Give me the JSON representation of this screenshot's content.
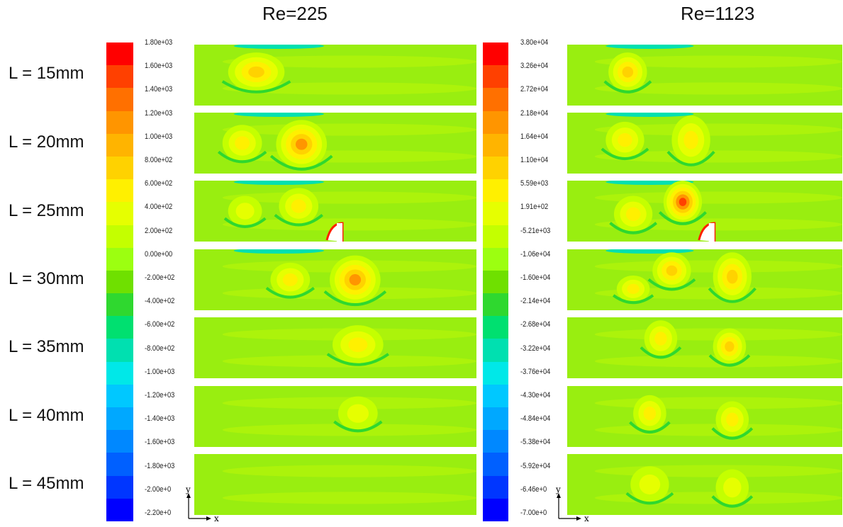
{
  "columns": [
    {
      "title": "Re=225",
      "ticks": [
        "1.80e+03",
        "1.60e+03",
        "1.40e+03",
        "1.20e+03",
        "1.00e+03",
        "8.00e+02",
        "6.00e+02",
        "4.00e+02",
        "2.00e+02",
        "0.00e+00",
        "-2.00e+02",
        "-4.00e+02",
        "-6.00e+02",
        "-8.00e+02",
        "-1.00e+03",
        "-1.20e+03",
        "-1.40e+03",
        "-1.60e+03",
        "-1.80e+03",
        "-2.00e+0",
        "-2.20e+0"
      ]
    },
    {
      "title": "Re=1123",
      "ticks": [
        "3.80e+04",
        "3.26e+04",
        "2.72e+04",
        "2.18e+04",
        "1.64e+04",
        "1.10e+04",
        "5.59e+03",
        "1.91e+02",
        "-5.21e+03",
        "-1.06e+04",
        "-1.60e+04",
        "-2.14e+04",
        "-2.68e+04",
        "-3.22e+04",
        "-3.76e+04",
        "-4.30e+04",
        "-4.84e+04",
        "-5.38e+04",
        "-5.92e+04",
        "-6.46e+0",
        "-7.00e+0"
      ]
    }
  ],
  "rows": [
    "L = 15mm",
    "L = 20mm",
    "L = 25mm",
    "L = 30mm",
    "L = 35mm",
    "L = 40mm",
    "L = 45mm"
  ],
  "axes": {
    "x": "x",
    "y": "y"
  },
  "colorscale": [
    "#ff0000",
    "#ff4000",
    "#ff7000",
    "#ff9500",
    "#ffb400",
    "#ffd200",
    "#fff000",
    "#e6ff00",
    "#c4ff00",
    "#9cff10",
    "#6fe000",
    "#2fd82f",
    "#00e070",
    "#00e0b0",
    "#00e8e8",
    "#00c8ff",
    "#00a8ff",
    "#0088ff",
    "#0060ff",
    "#0036ff",
    "#0000ff"
  ]
}
